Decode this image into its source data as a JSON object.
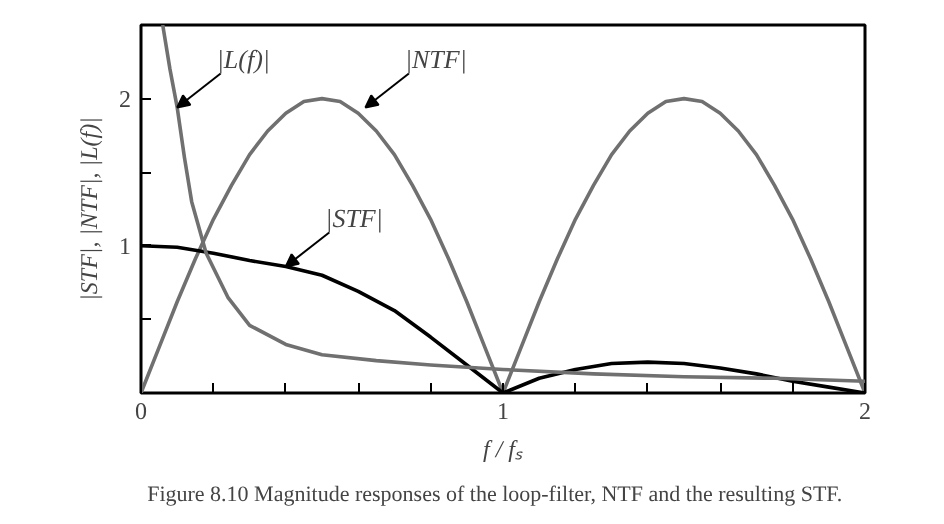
{
  "chart_data": {
    "type": "line",
    "xlabel": "f / fₛ",
    "ylabel": "|STF|, |NTF|, |L(f)|",
    "xlim": [
      0,
      2
    ],
    "ylim": [
      0,
      2.5
    ],
    "xticks": [
      0,
      {
        "value": 0.2,
        "label": null
      },
      {
        "value": 0.4,
        "label": null
      },
      {
        "value": 0.6,
        "label": null
      },
      {
        "value": 0.8,
        "label": null
      },
      1,
      {
        "value": 1.2,
        "label": null
      },
      {
        "value": 1.4,
        "label": null
      },
      {
        "value": 1.6,
        "label": null
      },
      {
        "value": 1.8,
        "label": null
      },
      2
    ],
    "yticks": [
      {
        "value": 0.5,
        "label": null
      },
      1,
      {
        "value": 1.5,
        "label": null
      },
      2
    ],
    "grid": false,
    "line_style": "solid",
    "marker": "none",
    "series": [
      {
        "color": "#707070",
        "x": [
          0,
          0.05,
          0.1,
          0.15,
          0.2,
          0.25,
          0.3,
          0.35,
          0.4,
          0.45,
          0.5,
          0.55,
          0.6,
          0.65,
          0.7,
          0.75,
          0.8,
          0.85,
          0.9,
          0.95,
          1,
          1.05,
          1.1,
          1.15,
          1.2,
          1.25,
          1.3,
          1.35,
          1.4,
          1.45,
          1.5,
          1.55,
          1.6,
          1.65,
          1.7,
          1.75,
          1.8,
          1.85,
          1.9,
          1.95,
          2
        ],
        "values": [
          0,
          0.31,
          0.62,
          0.91,
          1.18,
          1.41,
          1.62,
          1.78,
          1.9,
          1.98,
          2,
          1.98,
          1.9,
          1.78,
          1.62,
          1.41,
          1.18,
          0.91,
          0.62,
          0.31,
          0,
          0.31,
          0.62,
          0.91,
          1.18,
          1.41,
          1.62,
          1.78,
          1.9,
          1.98,
          2,
          1.98,
          1.9,
          1.78,
          1.62,
          1.41,
          1.18,
          0.91,
          0.62,
          0.31,
          0
        ]
      },
      {
        "color": "#000000",
        "x": [
          0,
          0.1,
          0.2,
          0.3,
          0.4,
          0.5,
          0.6,
          0.7,
          0.8,
          0.9,
          1,
          1.1,
          1.2,
          1.3,
          1.4,
          1.5,
          1.6,
          1.7,
          1.8,
          1.9,
          2
        ],
        "values": [
          1,
          0.99,
          0.95,
          0.9,
          0.86,
          0.8,
          0.69,
          0.56,
          0.38,
          0.19,
          0,
          0.1,
          0.16,
          0.2,
          0.21,
          0.2,
          0.17,
          0.13,
          0.08,
          0.04,
          0
        ]
      },
      {
        "color": "#707070",
        "x": [
          0.06,
          0.08,
          0.1,
          0.12,
          0.14,
          0.18,
          0.24,
          0.3,
          0.4,
          0.5,
          0.65,
          0.8,
          1,
          1.25,
          1.5,
          1.75,
          2
        ],
        "values": [
          2.5,
          2.2,
          1.94,
          1.6,
          1.3,
          0.95,
          0.65,
          0.46,
          0.33,
          0.26,
          0.22,
          0.19,
          0.16,
          0.13,
          0.11,
          0.1,
          0.08
        ]
      }
    ],
    "annotations": [
      {
        "text": "|L(f)|",
        "x": 0.1,
        "y": 1.94
      },
      {
        "text": "|NTF|",
        "x": 0.62,
        "y": 1.94
      },
      {
        "text": "|STF|",
        "x": 0.4,
        "y": 0.86
      },
      "Figure 8.10    Magnitude responses of the loop-filter, NTF and the resulting STF."
    ]
  }
}
